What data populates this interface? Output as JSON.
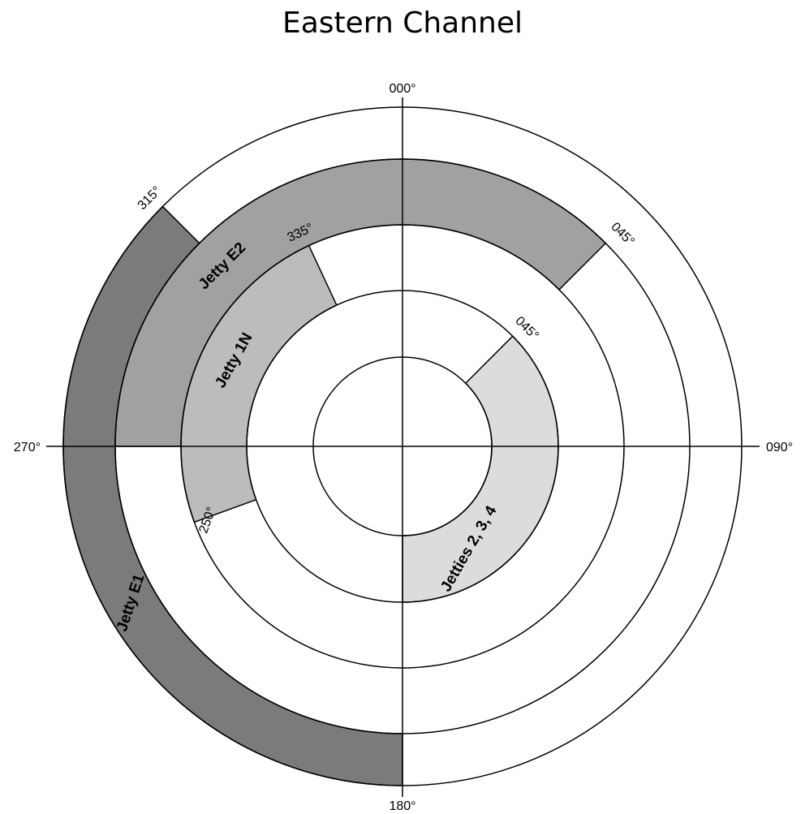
{
  "title": "Eastern Channel",
  "compass_labels": {
    "north": "000°",
    "east": "090°",
    "south": "180°",
    "west": "270°"
  },
  "colors": {
    "jetty_e1": "#7b7b7b",
    "jetty_e2": "#a1a1a1",
    "jetty_1n": "#bcbcbc",
    "jetties_234": "#dcdcdc",
    "ring_stroke": "#000000"
  },
  "sectors": [
    {
      "id": "jetty-e1",
      "label": "Jetty E1",
      "from_bearing": 180,
      "to_bearing": 315,
      "from_label": "",
      "to_label": "315°"
    },
    {
      "id": "jetty-e2",
      "label": "Jetty E2",
      "from_bearing": 270,
      "to_bearing": 45,
      "from_label": "",
      "to_label": "045°"
    },
    {
      "id": "jetty-1n",
      "label": "Jetty 1N",
      "from_bearing": 250,
      "to_bearing": 335,
      "from_label": "250°",
      "to_label": "335°"
    },
    {
      "id": "jetties-234",
      "label": "Jetties 2, 3, 4",
      "from_bearing": 45,
      "to_bearing": 180,
      "from_label": "045°",
      "to_label": ""
    }
  ]
}
